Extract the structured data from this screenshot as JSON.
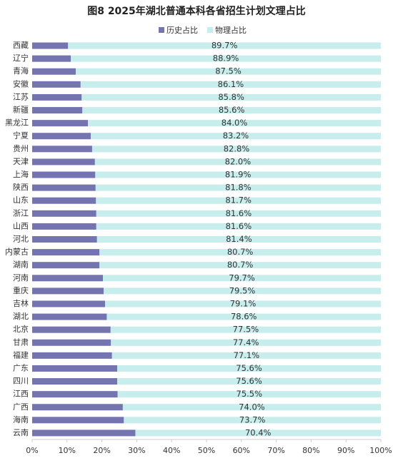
{
  "chart_data": {
    "type": "bar",
    "orientation": "horizontal",
    "stacked": true,
    "title": "图8 2025年湖北普通本科各省招生计划文理占比",
    "categories": [
      "西藏",
      "辽宁",
      "青海",
      "安徽",
      "江苏",
      "新疆",
      "黑龙江",
      "宁夏",
      "贵州",
      "天津",
      "上海",
      "陕西",
      "山东",
      "浙江",
      "山西",
      "河北",
      "内蒙古",
      "湖南",
      "河南",
      "重庆",
      "吉林",
      "湖北",
      "北京",
      "甘肃",
      "福建",
      "广东",
      "四川",
      "江西",
      "广西",
      "海南",
      "云南"
    ],
    "series": [
      {
        "name": "历史占比",
        "color": "#7474b0",
        "values": [
          10.3,
          11.1,
          12.5,
          13.9,
          14.2,
          14.4,
          16.0,
          16.8,
          17.2,
          18.0,
          18.1,
          18.2,
          18.3,
          18.4,
          18.4,
          18.6,
          19.3,
          19.3,
          20.3,
          20.5,
          20.9,
          21.4,
          22.5,
          22.6,
          22.9,
          24.4,
          24.4,
          24.5,
          26.0,
          26.3,
          29.6
        ]
      },
      {
        "name": "物理占比",
        "color": "#c8eded",
        "values": [
          89.7,
          88.9,
          87.5,
          86.1,
          85.8,
          85.6,
          84.0,
          83.2,
          82.8,
          82.0,
          81.9,
          81.8,
          81.7,
          81.6,
          81.6,
          81.4,
          80.7,
          80.7,
          79.7,
          79.5,
          79.1,
          78.6,
          77.5,
          77.4,
          77.1,
          75.6,
          75.6,
          75.5,
          74.0,
          73.7,
          70.4
        ],
        "value_labels": [
          "89.7%",
          "88.9%",
          "87.5%",
          "86.1%",
          "85.8%",
          "85.6%",
          "84.0%",
          "83.2%",
          "82.8%",
          "82.0%",
          "81.9%",
          "81.8%",
          "81.7%",
          "81.6%",
          "81.6%",
          "81.4%",
          "80.7%",
          "80.7%",
          "79.7%",
          "79.5%",
          "79.1%",
          "78.6%",
          "77.5%",
          "77.4%",
          "77.1%",
          "75.6%",
          "75.6%",
          "75.5%",
          "74.0%",
          "73.7%",
          "70.4%"
        ]
      }
    ],
    "xlim": [
      0,
      100
    ],
    "xticks": [
      {
        "value": 0,
        "label": "0%"
      },
      {
        "value": 10,
        "label": "10%"
      },
      {
        "value": 20,
        "label": "20%"
      },
      {
        "value": 30,
        "label": "30%"
      },
      {
        "value": 40,
        "label": "40%"
      },
      {
        "value": 50,
        "label": "50%"
      },
      {
        "value": 60,
        "label": "60%"
      },
      {
        "value": 70,
        "label": "70%"
      },
      {
        "value": 80,
        "label": "80%"
      },
      {
        "value": 90,
        "label": "90%"
      },
      {
        "value": 100,
        "label": "100%"
      }
    ],
    "legend": "top"
  }
}
